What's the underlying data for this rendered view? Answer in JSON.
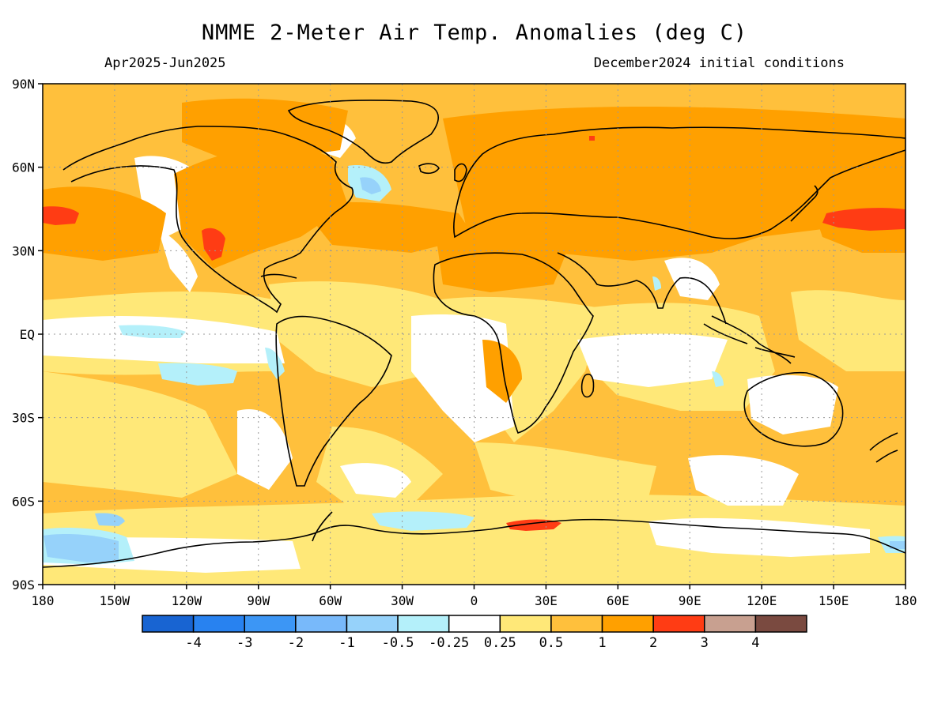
{
  "title": "NMME 2-Meter Air Temp. Anomalies (deg C)",
  "subtitle_left": "Apr2025-Jun2025",
  "subtitle_right": "December2024 initial conditions",
  "lat_ticks": [
    "90N",
    "60N",
    "30N",
    "EQ",
    "30S",
    "60S",
    "90S"
  ],
  "lon_ticks": [
    "180",
    "150W",
    "120W",
    "90W",
    "60W",
    "30W",
    "0",
    "30E",
    "60E",
    "90E",
    "120E",
    "150E",
    "180"
  ],
  "colorbar": {
    "colors": [
      "#1864d2",
      "#2882f0",
      "#3c96f5",
      "#78b9fa",
      "#96d2fa",
      "#b4f0fa",
      "#ffffff",
      "#ffe878",
      "#ffc03c",
      "#ffa000",
      "#ff3c14",
      "#c8a090",
      "#7a4a40"
    ],
    "labels": [
      "-4",
      "-3",
      "-2",
      "-1",
      "-0.5",
      "-0.25",
      "0.25",
      "0.5",
      "1",
      "2",
      "3",
      "4"
    ]
  },
  "palette": {
    "white": "#ffffff",
    "light_yellow": "#ffe878",
    "light_orange": "#ffc03c",
    "orange": "#ffa000",
    "red": "#ff3c14",
    "light_cyan": "#b4f0fa",
    "light_blue": "#96d2fa",
    "blue": "#78b9fa",
    "coast": "#000000",
    "grid": "#999999"
  }
}
